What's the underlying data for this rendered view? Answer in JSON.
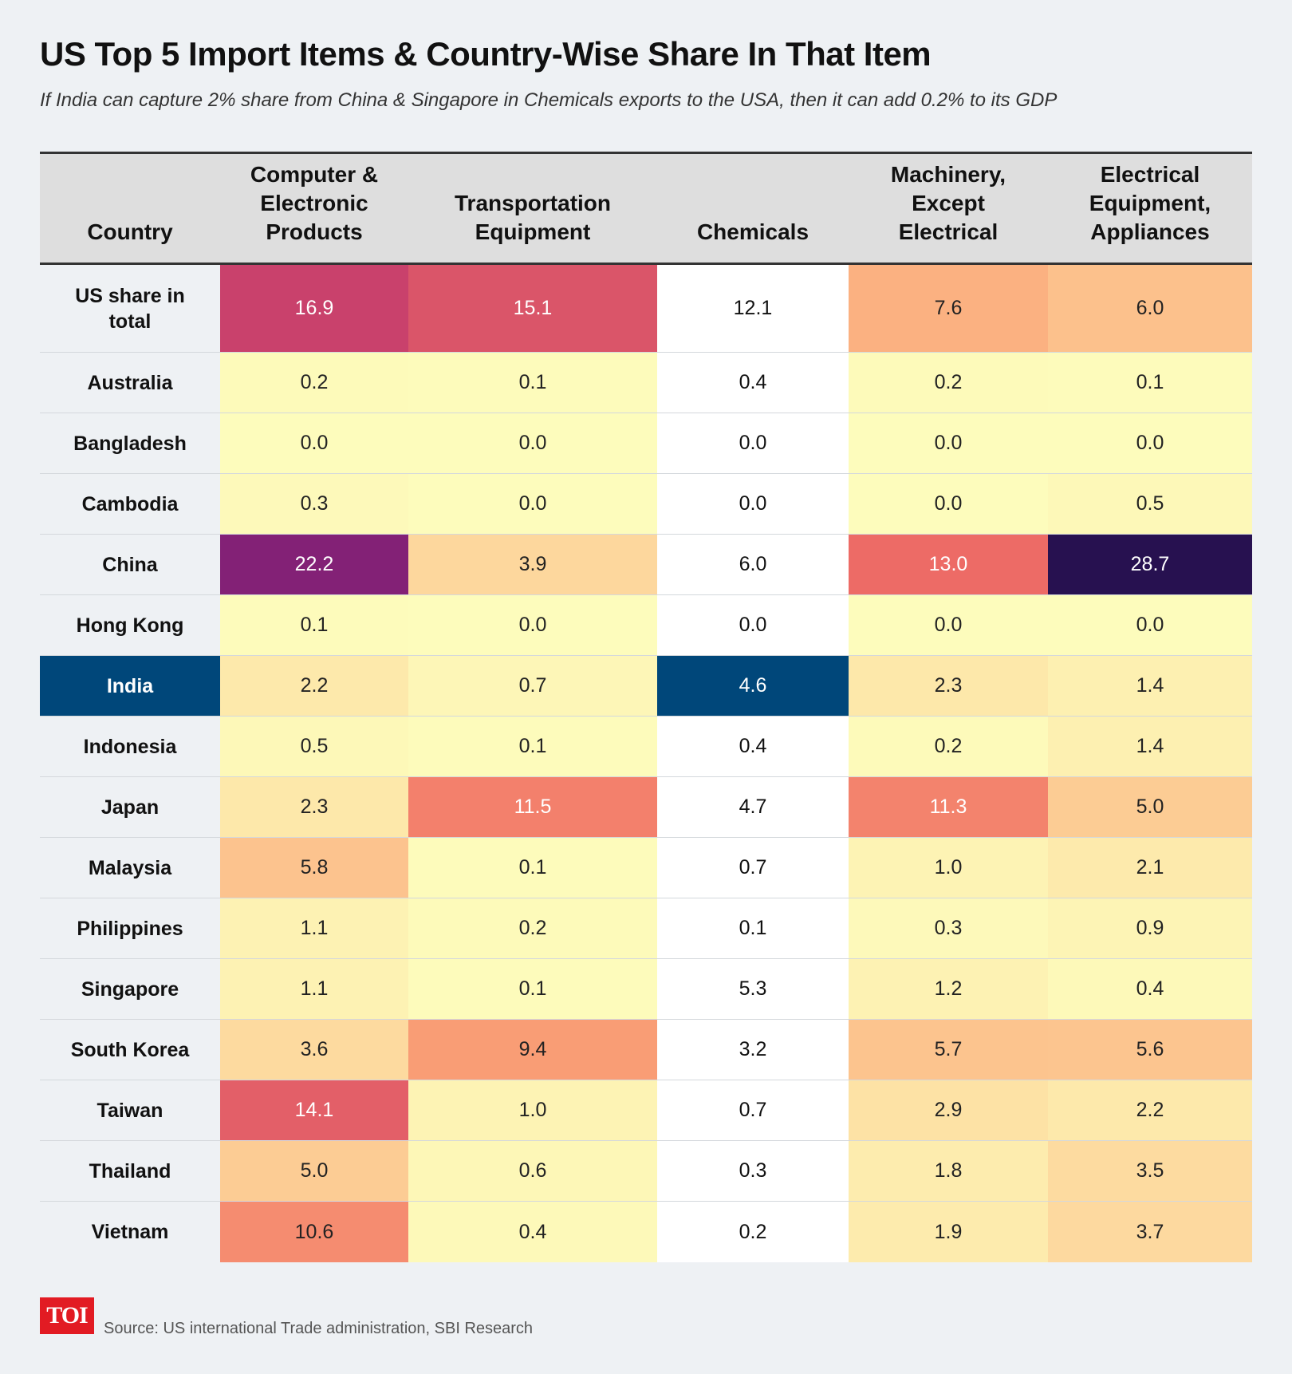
{
  "title": "US Top 5 Import Items & Country-Wise Share In That Item",
  "subtitle": "If India can capture 2% share from China & Singapore in Chemicals exports to the USA, then it can add 0.2% to its GDP",
  "source": "Source: US international Trade administration, SBI Research",
  "logo": "TOI",
  "colors": {
    "highlight": "#00477a",
    "header_bg": "#dedede",
    "background": "#eef1f4",
    "scale_low": "#fdfcbc",
    "scale_high": "#271150"
  },
  "chart_data": {
    "type": "table",
    "subtype": "heatmap",
    "title": "US Top 5 Import Items & Country-Wise Share In That Item",
    "columns": [
      "Country",
      "Computer &\nElectronic\nProducts",
      "Transportation\nEquipment",
      "Chemicals",
      "Machinery,\nExcept\nElectrical",
      "Electrical\nEquipment,\nAppliances"
    ],
    "highlight_row": "India",
    "rows": [
      {
        "country": "US share in\ntotal",
        "values": [
          "16.9",
          "15.1",
          "12.1",
          "7.6",
          "6.0"
        ]
      },
      {
        "country": "Australia",
        "values": [
          "0.2",
          "0.1",
          "0.4",
          "0.2",
          "0.1"
        ]
      },
      {
        "country": "Bangladesh",
        "values": [
          "0.0",
          "0.0",
          "0.0",
          "0.0",
          "0.0"
        ]
      },
      {
        "country": "Cambodia",
        "values": [
          "0.3",
          "0.0",
          "0.0",
          "0.0",
          "0.5"
        ]
      },
      {
        "country": "China",
        "values": [
          "22.2",
          "3.9",
          "6.0",
          "13.0",
          "28.7"
        ]
      },
      {
        "country": "Hong Kong",
        "values": [
          "0.1",
          "0.0",
          "0.0",
          "0.0",
          "0.0"
        ]
      },
      {
        "country": "India",
        "values": [
          "2.2",
          "0.7",
          "4.6",
          "2.3",
          "1.4"
        ]
      },
      {
        "country": "Indonesia",
        "values": [
          "0.5",
          "0.1",
          "0.4",
          "0.2",
          "1.4"
        ]
      },
      {
        "country": "Japan",
        "values": [
          "2.3",
          "11.5",
          "4.7",
          "11.3",
          "5.0"
        ]
      },
      {
        "country": "Malaysia",
        "values": [
          "5.8",
          "0.1",
          "0.7",
          "1.0",
          "2.1"
        ]
      },
      {
        "country": "Philippines",
        "values": [
          "1.1",
          "0.2",
          "0.1",
          "0.3",
          "0.9"
        ]
      },
      {
        "country": "Singapore",
        "values": [
          "1.1",
          "0.1",
          "5.3",
          "1.2",
          "0.4"
        ]
      },
      {
        "country": "South Korea",
        "values": [
          "3.6",
          "9.4",
          "3.2",
          "5.7",
          "5.6"
        ]
      },
      {
        "country": "Taiwan",
        "values": [
          "14.1",
          "1.0",
          "0.7",
          "2.9",
          "2.2"
        ]
      },
      {
        "country": "Thailand",
        "values": [
          "5.0",
          "0.6",
          "0.3",
          "1.8",
          "3.5"
        ]
      },
      {
        "country": "Vietnam",
        "values": [
          "10.6",
          "0.4",
          "0.2",
          "1.9",
          "3.7"
        ]
      }
    ],
    "unshaded_columns": [
      2
    ]
  }
}
